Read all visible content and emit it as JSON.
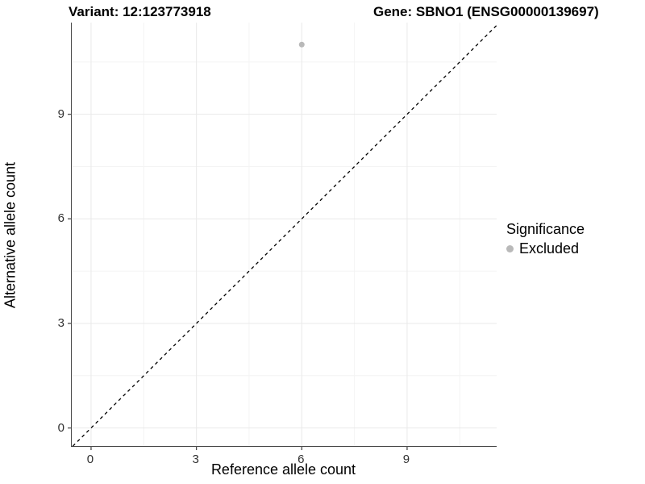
{
  "chart_data": {
    "type": "scatter",
    "title_left": "Variant: 12:123773918",
    "title_right": "Gene: SBNO1 (ENSG00000139697)",
    "xlabel": "Reference allele count",
    "ylabel": "Alternative allele count",
    "xlim": [
      -0.55,
      11.55
    ],
    "ylim": [
      -0.52,
      11.63
    ],
    "xticks": [
      0,
      3,
      6,
      9
    ],
    "yticks": [
      0,
      3,
      6,
      9
    ],
    "minor_xticks": [
      1.5,
      4.5,
      7.5,
      10.5
    ],
    "minor_yticks": [
      1.5,
      4.5,
      7.5,
      10.5
    ],
    "grid": true,
    "major_grid_color": "#e9e9e9",
    "minor_grid_color": "#f4f4f4",
    "axis_line_color": "#4a4a4a",
    "reference_line": {
      "type": "diagonal-identity",
      "style": "dashed",
      "color": "#000000"
    },
    "series": [
      {
        "name": "Excluded",
        "color": "#b9b9b9",
        "point_radius": 3.5,
        "points": [
          {
            "x": 6,
            "y": 11
          }
        ]
      }
    ],
    "legend": {
      "title": "Significance",
      "position": "right",
      "entries": [
        {
          "label": "Excluded",
          "color": "#b9b9b9"
        }
      ]
    }
  }
}
